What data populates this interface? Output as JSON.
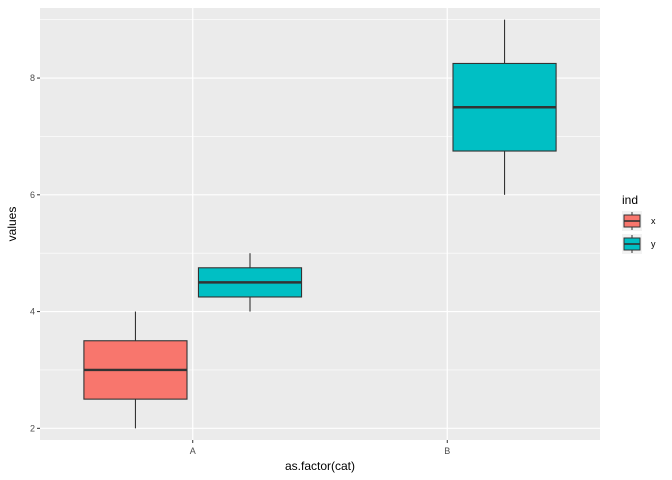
{
  "chart_data": {
    "type": "boxplot",
    "xlabel": "as.factor(cat)",
    "ylabel": "values",
    "categories": [
      "A",
      "B"
    ],
    "yticks": [
      2,
      4,
      6,
      8
    ],
    "ylim": [
      1.8,
      9.2
    ],
    "grid": true,
    "legend": {
      "title": "ind",
      "position": "right",
      "entries": [
        {
          "label": "x",
          "color": "#F8766D"
        },
        {
          "label": "y",
          "color": "#00BFC4"
        }
      ]
    },
    "boxes": [
      {
        "category": "A",
        "series": "x",
        "min": 2,
        "q1": 2.5,
        "median": 3,
        "q3": 3.5,
        "max": 4
      },
      {
        "category": "A",
        "series": "y",
        "min": 4,
        "q1": 4.25,
        "median": 4.5,
        "q3": 4.75,
        "max": 5
      },
      {
        "category": "B",
        "series": "y",
        "min": 6,
        "q1": 6.75,
        "median": 7.5,
        "q3": 8.25,
        "max": 9
      }
    ],
    "colors": {
      "panel": "#EBEBEB",
      "grid": "#FFFFFF",
      "outline": "#333333"
    }
  }
}
